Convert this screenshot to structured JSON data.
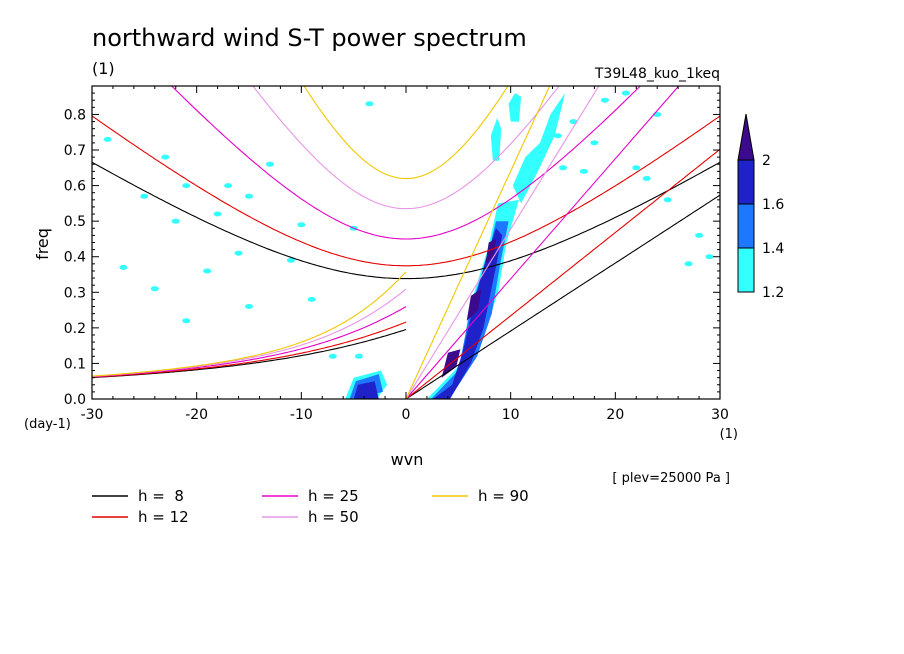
{
  "chart_data": {
    "type": "contour",
    "title": "northward wind S-T power spectrum",
    "subtitle_left": "(1)",
    "subtitle_right": "T39L48_kuo_1keq",
    "xlabel": "wvn",
    "ylabel": "freq",
    "x_unit": "(1)",
    "y_unit": "(day-1)",
    "annotation": "[ plev=25000 Pa ]",
    "xlim": [
      -30,
      30
    ],
    "ylim": [
      0,
      0.88
    ],
    "x_ticks": [
      -30,
      -20,
      -10,
      0,
      10,
      20,
      30
    ],
    "x_tick_labels": [
      "-30",
      "-20",
      "-10",
      "0",
      "10",
      "20",
      "30"
    ],
    "y_ticks": [
      0,
      0.1,
      0.2,
      0.3,
      0.4,
      0.5,
      0.6,
      0.7,
      0.8
    ],
    "y_tick_labels": [
      "0.0",
      "0.1",
      "0.2",
      "0.3",
      "0.4",
      "0.5",
      "0.6",
      "0.7",
      "0.8"
    ],
    "colorbar": {
      "levels": [
        1.2,
        1.4,
        1.6,
        2
      ],
      "labels": [
        "1.2",
        "1.4",
        "1.6",
        "2"
      ],
      "colors": [
        "#33FFFF",
        "#1E78FF",
        "#1E22C8",
        "#3C0A8C"
      ]
    },
    "dispersion_curves": [
      {
        "name": "h =  8",
        "h": 8,
        "color": "#000000"
      },
      {
        "name": "h = 12",
        "h": 12,
        "color": "#E60000"
      },
      {
        "name": "h = 25",
        "h": 25,
        "color": "#E600C8"
      },
      {
        "name": "h = 50",
        "h": 50,
        "color": "#E696E6"
      },
      {
        "name": "h = 90",
        "h": 90,
        "color": "#F0C800"
      }
    ],
    "contours": [
      {
        "level": 1.2,
        "polygons": [
          [
            [
              2.0,
              0.0
            ],
            [
              5.3,
              0.1
            ],
            [
              6.0,
              0.25
            ],
            [
              7.8,
              0.42
            ],
            [
              8.8,
              0.55
            ],
            [
              10.8,
              0.56
            ],
            [
              9.6,
              0.44
            ],
            [
              8.8,
              0.3
            ],
            [
              7.2,
              0.16
            ],
            [
              5.0,
              0.04
            ],
            [
              4.2,
              0.0
            ]
          ],
          [
            [
              -5.8,
              0.0
            ],
            [
              -5.0,
              0.06
            ],
            [
              -2.4,
              0.08
            ],
            [
              -1.8,
              0.04
            ],
            [
              -2.8,
              0.0
            ]
          ],
          [
            [
              11.0,
              0.55
            ],
            [
              10.2,
              0.6
            ],
            [
              11.4,
              0.68
            ],
            [
              12.8,
              0.72
            ],
            [
              13.8,
              0.8
            ],
            [
              15.2,
              0.86
            ],
            [
              14.2,
              0.74
            ],
            [
              12.6,
              0.64
            ]
          ],
          [
            [
              8.3,
              0.67
            ],
            [
              8.9,
              0.67
            ],
            [
              9.1,
              0.76
            ],
            [
              8.7,
              0.79
            ],
            [
              8.1,
              0.74
            ]
          ],
          [
            [
              10.0,
              0.78
            ],
            [
              10.8,
              0.78
            ],
            [
              11.0,
              0.85
            ],
            [
              10.4,
              0.86
            ],
            [
              9.8,
              0.83
            ]
          ]
        ]
      },
      {
        "level": 1.4,
        "polygons": [
          [
            [
              2.4,
              0.0
            ],
            [
              5.0,
              0.08
            ],
            [
              6.2,
              0.26
            ],
            [
              7.8,
              0.4
            ],
            [
              8.6,
              0.5
            ],
            [
              9.8,
              0.5
            ],
            [
              9.0,
              0.38
            ],
            [
              8.2,
              0.24
            ],
            [
              6.8,
              0.12
            ],
            [
              4.6,
              0.02
            ],
            [
              3.8,
              0.0
            ]
          ],
          [
            [
              -5.4,
              0.0
            ],
            [
              -4.8,
              0.05
            ],
            [
              -2.6,
              0.07
            ],
            [
              -2.2,
              0.02
            ]
          ]
        ]
      },
      {
        "level": 1.6,
        "polygons": [
          [
            [
              2.6,
              0.0
            ],
            [
              4.4,
              0.04
            ],
            [
              5.4,
              0.13
            ],
            [
              6.5,
              0.27
            ],
            [
              7.6,
              0.39
            ],
            [
              8.6,
              0.48
            ],
            [
              9.2,
              0.46
            ],
            [
              8.3,
              0.33
            ],
            [
              7.4,
              0.2
            ],
            [
              6.2,
              0.1
            ],
            [
              4.2,
              0.0
            ]
          ],
          [
            [
              -5.0,
              0.0
            ],
            [
              -4.6,
              0.04
            ],
            [
              -3.0,
              0.05
            ],
            [
              -2.6,
              0.0
            ]
          ]
        ]
      },
      {
        "level": 2.0,
        "polygons": [
          [
            [
              3.4,
              0.06
            ],
            [
              4.8,
              0.09
            ],
            [
              5.2,
              0.14
            ],
            [
              4.0,
              0.13
            ]
          ],
          [
            [
              5.8,
              0.22
            ],
            [
              6.9,
              0.25
            ],
            [
              7.2,
              0.31
            ],
            [
              6.2,
              0.29
            ]
          ],
          [
            [
              7.6,
              0.38
            ],
            [
              8.4,
              0.4
            ],
            [
              8.6,
              0.45
            ],
            [
              7.9,
              0.44
            ]
          ]
        ]
      }
    ],
    "patches": [
      [
        -28.5,
        0.73
      ],
      [
        -23,
        0.68
      ],
      [
        -13,
        0.66
      ],
      [
        -21,
        0.6
      ],
      [
        -17,
        0.6
      ],
      [
        -25,
        0.57
      ],
      [
        -15,
        0.57
      ],
      [
        -22,
        0.5
      ],
      [
        -18,
        0.52
      ],
      [
        -10,
        0.49
      ],
      [
        -5,
        0.48
      ],
      [
        -16,
        0.41
      ],
      [
        -11,
        0.39
      ],
      [
        -27,
        0.37
      ],
      [
        -19,
        0.36
      ],
      [
        -24,
        0.31
      ],
      [
        -9,
        0.28
      ],
      [
        -15,
        0.26
      ],
      [
        -21,
        0.22
      ],
      [
        -7,
        0.12
      ],
      [
        -3.5,
        0.83
      ],
      [
        -4.5,
        0.12
      ],
      [
        12,
        0.67
      ],
      [
        14.5,
        0.74
      ],
      [
        16,
        0.78
      ],
      [
        17,
        0.64
      ],
      [
        19,
        0.84
      ],
      [
        21,
        0.86
      ],
      [
        24,
        0.8
      ],
      [
        25,
        0.56
      ],
      [
        23,
        0.62
      ],
      [
        27,
        0.38
      ],
      [
        28,
        0.46
      ],
      [
        29,
        0.4
      ],
      [
        22,
        0.65
      ],
      [
        18,
        0.72
      ],
      [
        15,
        0.65
      ]
    ]
  },
  "legend": {
    "entries": [
      {
        "label": "h =  8",
        "color": "#000000"
      },
      {
        "label": "h = 12",
        "color": "#E60000"
      },
      {
        "label": "h = 25",
        "color": "#E600C8"
      },
      {
        "label": "h = 50",
        "color": "#E696E6"
      },
      {
        "label": "h = 90",
        "color": "#F0C800"
      }
    ]
  }
}
